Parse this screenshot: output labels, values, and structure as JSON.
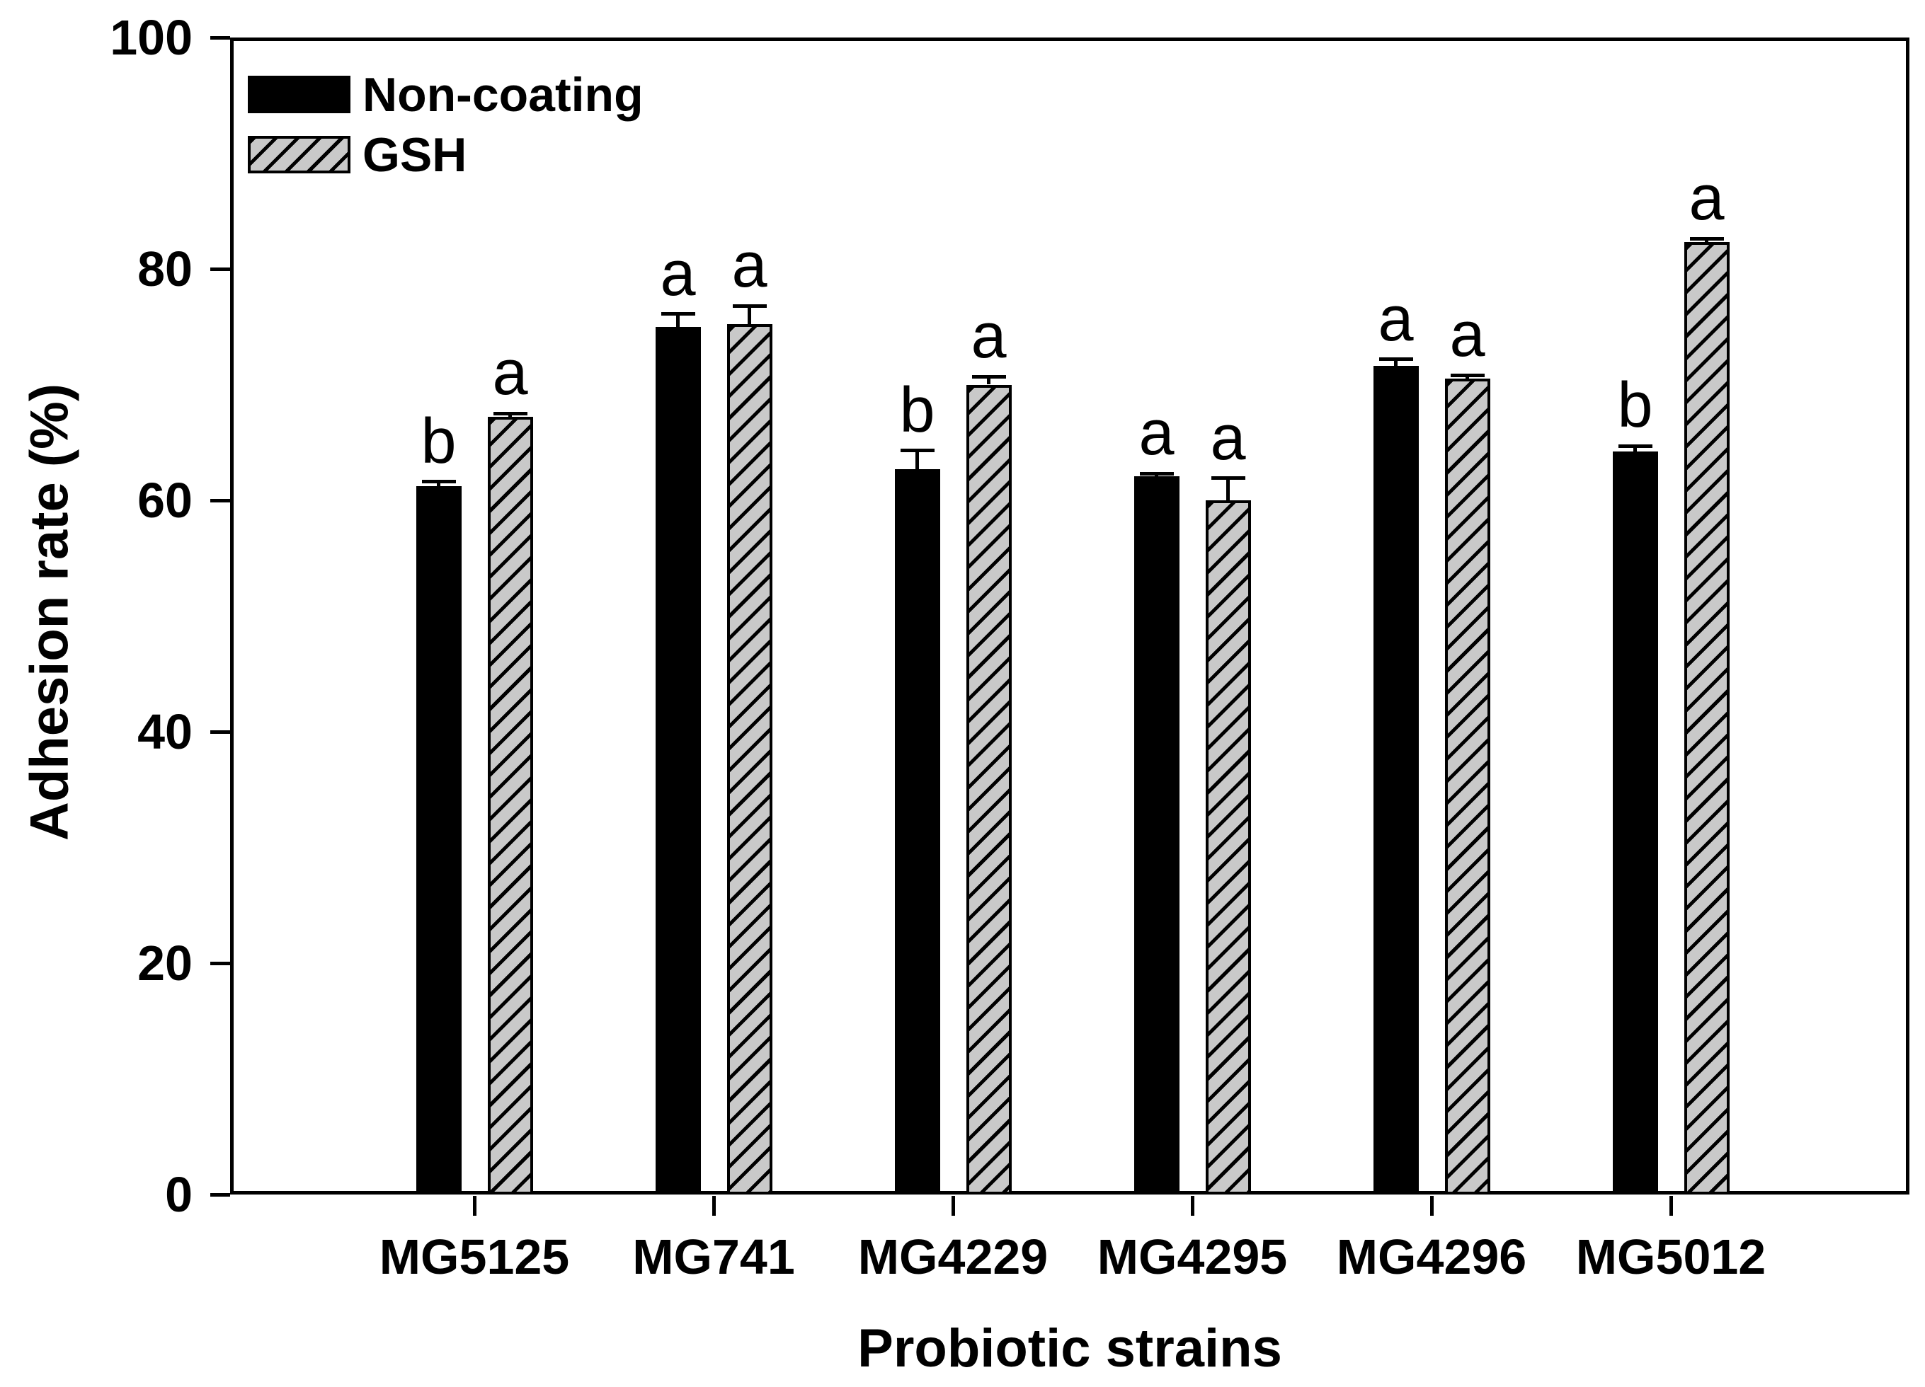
{
  "figure": {
    "background": "#ffffff",
    "text_color": "#000000"
  },
  "legend": {
    "items": [
      {
        "label": "Non-coating",
        "swatch": "solid-black"
      },
      {
        "label": "GSH",
        "swatch": "hatched-gray"
      }
    ]
  },
  "axes": {
    "y": {
      "title": "Adhesion rate (%)",
      "min": 0,
      "max": 100,
      "ticks": [
        0,
        20,
        40,
        60,
        80,
        100
      ]
    },
    "x": {
      "title": "Probiotic strains",
      "categories": [
        "MG5125",
        "MG741",
        "MG4229",
        "MG4295",
        "MG4296",
        "MG5012"
      ]
    }
  },
  "chart_data": {
    "type": "bar",
    "title": "",
    "xlabel": "Probiotic strains",
    "ylabel": "Adhesion rate (%)",
    "ylim": [
      0,
      100
    ],
    "grid": false,
    "legend_position": "top-left-inside",
    "categories": [
      "MG5125",
      "MG741",
      "MG4229",
      "MG4295",
      "MG4296",
      "MG5012"
    ],
    "series": [
      {
        "name": "Non-coating",
        "style": "solid-black",
        "values": [
          61.2,
          75.0,
          62.7,
          62.1,
          71.6,
          64.2
        ],
        "errors": [
          0.4,
          1.1,
          1.6,
          0.2,
          0.6,
          0.5
        ],
        "letters": [
          "b",
          "a",
          "b",
          "a",
          "a",
          "b"
        ]
      },
      {
        "name": "GSH",
        "style": "hatched-gray",
        "values": [
          67.2,
          75.2,
          70.0,
          60.0,
          70.5,
          82.3
        ],
        "errors": [
          0.3,
          1.6,
          0.7,
          1.9,
          0.3,
          0.3
        ],
        "letters": [
          "a",
          "a",
          "a",
          "a",
          "a",
          "a"
        ]
      }
    ],
    "colors": {
      "bar_fill_series1": "#000000",
      "bar_fill_series2": "#c9c9c9",
      "hatch_line": "#000000",
      "axis": "#000000"
    }
  }
}
